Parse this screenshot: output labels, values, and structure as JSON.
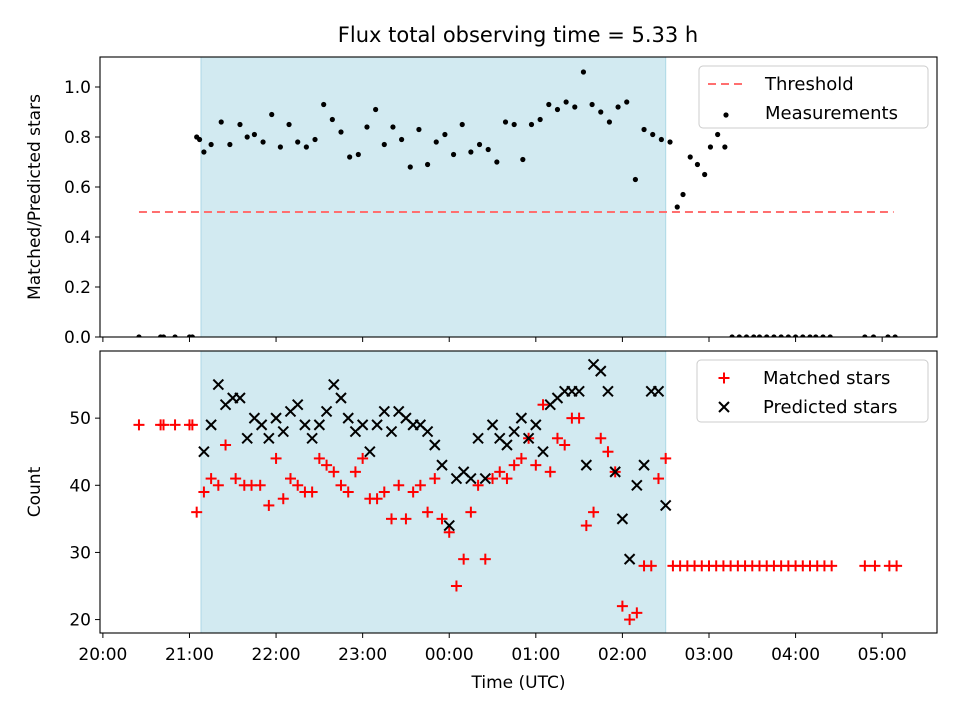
{
  "title": "Flux total observing time = 5.33 h",
  "colors": {
    "shade": "#add8e6",
    "threshold": "#ff6f6f",
    "measurement": "#000000",
    "matched": "#ff0000",
    "predicted": "#000000"
  },
  "chart_data": [
    {
      "type": "scatter",
      "ylabel": "Matched/Predicted stars",
      "xlabel": "",
      "ylim": [
        0,
        1.12
      ],
      "xlim": [
        "19:58",
        "05:38"
      ],
      "yticks": [
        "0.0",
        "0.2",
        "0.4",
        "0.6",
        "0.8",
        "1.0"
      ],
      "legend_position": "top-right",
      "shaded_interval": [
        "21:08",
        "02:30"
      ],
      "threshold": {
        "name": "Threshold",
        "value": 0.5,
        "x_range": [
          "20:25",
          "05:08"
        ]
      },
      "series": [
        {
          "name": "Measurements",
          "x": [
            "20:25",
            "20:40",
            "20:42",
            "20:50",
            "21:00",
            "21:02",
            "21:05",
            "21:07",
            "21:10",
            "21:15",
            "21:22",
            "21:28",
            "21:35",
            "21:40",
            "21:45",
            "21:51",
            "21:57",
            "22:03",
            "22:09",
            "22:15",
            "22:21",
            "22:27",
            "22:33",
            "22:39",
            "22:45",
            "22:51",
            "22:57",
            "23:03",
            "23:09",
            "23:15",
            "23:21",
            "23:27",
            "23:33",
            "23:39",
            "23:45",
            "23:51",
            "23:57",
            "00:03",
            "00:09",
            "00:15",
            "00:21",
            "00:27",
            "00:33",
            "00:39",
            "00:45",
            "00:51",
            "00:57",
            "01:03",
            "01:09",
            "01:15",
            "01:21",
            "01:27",
            "01:33",
            "01:39",
            "01:45",
            "01:51",
            "01:57",
            "02:03",
            "02:09",
            "02:15",
            "02:21",
            "02:27",
            "02:33",
            "02:38",
            "02:42",
            "02:47",
            "02:52",
            "02:57",
            "03:01",
            "03:06",
            "03:11",
            "03:16",
            "03:21",
            "03:26",
            "03:31",
            "03:35",
            "03:40",
            "03:45",
            "03:50",
            "03:55",
            "04:00",
            "04:05",
            "04:10",
            "04:14",
            "04:19",
            "04:24",
            "04:48",
            "04:54",
            "05:04",
            "05:09"
          ],
          "y": [
            0,
            0,
            0,
            0,
            0,
            0,
            0.8,
            0.79,
            0.74,
            0.77,
            0.86,
            0.77,
            0.85,
            0.8,
            0.81,
            0.78,
            0.89,
            0.76,
            0.85,
            0.78,
            0.76,
            0.79,
            0.93,
            0.87,
            0.82,
            0.72,
            0.73,
            0.84,
            0.91,
            0.77,
            0.84,
            0.79,
            0.68,
            0.83,
            0.69,
            0.78,
            0.81,
            0.73,
            0.85,
            0.74,
            0.77,
            0.75,
            0.7,
            0.86,
            0.85,
            0.71,
            0.85,
            0.87,
            0.93,
            0.91,
            0.94,
            0.92,
            1.06,
            0.93,
            0.9,
            0.86,
            0.92,
            0.94,
            0.63,
            0.83,
            0.81,
            0.79,
            0.78,
            0.52,
            0.57,
            0.72,
            0.69,
            0.65,
            0.76,
            0.81,
            0.76,
            0,
            0,
            0,
            0,
            0,
            0,
            0,
            0,
            0,
            0,
            0,
            0,
            0,
            0,
            0,
            0,
            0,
            0,
            0
          ]
        }
      ]
    },
    {
      "type": "scatter",
      "ylabel": "Count",
      "xlabel": "Time (UTC)",
      "ylim": [
        18.0,
        60.0
      ],
      "xlim": [
        "19:58",
        "05:38"
      ],
      "yticks": [
        "20",
        "30",
        "40",
        "50"
      ],
      "xticks": [
        "20:00",
        "21:00",
        "22:00",
        "23:00",
        "00:00",
        "01:00",
        "02:00",
        "03:00",
        "04:00",
        "05:00"
      ],
      "legend_position": "top-right",
      "shaded_interval": [
        "21:08",
        "02:30"
      ],
      "series": [
        {
          "name": "Matched stars",
          "x": [
            "20:25",
            "20:40",
            "20:42",
            "20:50",
            "21:00",
            "21:02",
            "21:05",
            "21:10",
            "21:15",
            "21:20",
            "21:25",
            "21:32",
            "21:38",
            "21:43",
            "21:49",
            "21:55",
            "22:00",
            "22:05",
            "22:10",
            "22:15",
            "22:20",
            "22:25",
            "22:30",
            "22:35",
            "22:40",
            "22:45",
            "22:50",
            "22:55",
            "23:00",
            "23:05",
            "23:10",
            "23:15",
            "23:20",
            "23:25",
            "23:30",
            "23:35",
            "23:40",
            "23:45",
            "23:50",
            "23:55",
            "00:00",
            "00:05",
            "00:10",
            "00:15",
            "00:20",
            "00:25",
            "00:30",
            "00:35",
            "00:40",
            "00:45",
            "00:50",
            "00:55",
            "01:00",
            "01:05",
            "01:10",
            "01:15",
            "01:20",
            "01:25",
            "01:30",
            "01:35",
            "01:40",
            "01:45",
            "01:50",
            "01:55",
            "02:00",
            "02:05",
            "02:10",
            "02:15",
            "02:20",
            "02:25",
            "02:30",
            "02:35",
            "02:40",
            "02:45",
            "02:50",
            "02:55",
            "03:00",
            "03:05",
            "03:10",
            "03:15",
            "03:20",
            "03:25",
            "03:30",
            "03:35",
            "03:40",
            "03:45",
            "03:50",
            "03:55",
            "04:00",
            "04:05",
            "04:10",
            "04:15",
            "04:20",
            "04:25",
            "04:48",
            "04:55",
            "05:05",
            "05:10"
          ],
          "y": [
            49,
            49,
            49,
            49,
            49,
            49,
            36,
            39,
            41,
            40,
            46,
            41,
            40,
            40,
            40,
            37,
            44,
            38,
            41,
            40,
            39,
            39,
            44,
            43,
            42,
            40,
            39,
            42,
            44,
            38,
            38,
            39,
            35,
            40,
            35,
            39,
            40,
            36,
            41,
            35,
            33,
            25,
            29,
            36,
            40,
            29,
            41,
            42,
            41,
            43,
            44,
            47,
            43,
            52,
            42,
            47,
            46,
            50,
            50,
            34,
            36,
            47,
            45,
            42,
            22,
            20,
            21,
            28,
            28,
            41,
            44,
            28,
            28,
            28,
            28,
            28,
            28,
            28,
            28,
            28,
            28,
            28,
            28,
            28,
            28,
            28,
            28,
            28,
            28,
            28,
            28,
            28,
            28,
            28,
            28,
            28,
            28,
            28
          ]
        },
        {
          "name": "Predicted stars",
          "x": [
            "21:10",
            "21:15",
            "21:20",
            "21:25",
            "21:30",
            "21:35",
            "21:40",
            "21:45",
            "21:50",
            "21:55",
            "22:00",
            "22:05",
            "22:10",
            "22:15",
            "22:20",
            "22:25",
            "22:30",
            "22:35",
            "22:40",
            "22:45",
            "22:50",
            "22:55",
            "23:00",
            "23:05",
            "23:10",
            "23:15",
            "23:20",
            "23:25",
            "23:30",
            "23:35",
            "23:40",
            "23:45",
            "23:50",
            "23:55",
            "00:00",
            "00:05",
            "00:10",
            "00:15",
            "00:20",
            "00:25",
            "00:30",
            "00:35",
            "00:40",
            "00:45",
            "00:50",
            "00:55",
            "01:00",
            "01:05",
            "01:10",
            "01:15",
            "01:20",
            "01:25",
            "01:30",
            "01:35",
            "01:40",
            "01:45",
            "01:50",
            "01:55",
            "02:00",
            "02:05",
            "02:10",
            "02:15",
            "02:20",
            "02:25",
            "02:30"
          ],
          "y": [
            45,
            49,
            55,
            52,
            53,
            53,
            47,
            50,
            49,
            47,
            50,
            48,
            51,
            52,
            49,
            47,
            49,
            51,
            55,
            53,
            50,
            48,
            49,
            45,
            49,
            51,
            48,
            51,
            50,
            49,
            49,
            48,
            46,
            43,
            34,
            41,
            42,
            41,
            47,
            41,
            49,
            47,
            46,
            48,
            50,
            47,
            49,
            45,
            52,
            53,
            54,
            54,
            54,
            43,
            58,
            57,
            54,
            42,
            35,
            29,
            40,
            43,
            54,
            54,
            37
          ]
        }
      ]
    }
  ]
}
